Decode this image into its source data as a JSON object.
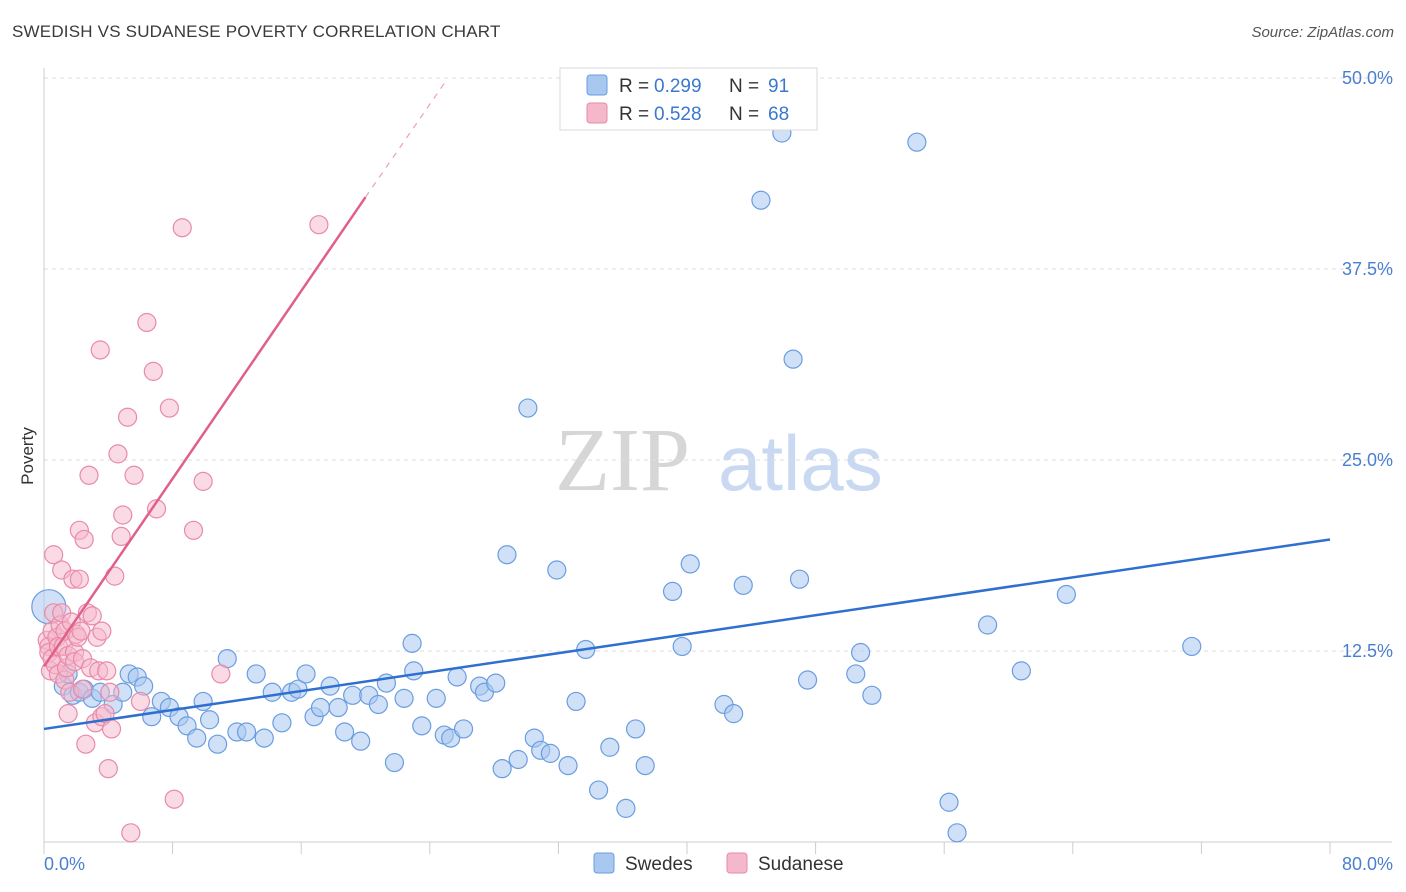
{
  "header": {
    "title": "SWEDISH VS SUDANESE POVERTY CORRELATION CHART",
    "source": "Source: ZipAtlas.com"
  },
  "watermark": {
    "zip": "ZIP",
    "atlas": "atlas"
  },
  "colors": {
    "swedes_fill": "#a9c8f0",
    "swedes_stroke": "#6a9de0",
    "swedes_line": "#2f6fcf",
    "sudanese_fill": "#f5b8cb",
    "sudanese_stroke": "#e88aa8",
    "sudanese_line": "#e0608a"
  },
  "legend": {
    "rows": [
      {
        "r_label": "R = ",
        "r_value": "0.299",
        "n_label": "N = ",
        "n_value": "91"
      },
      {
        "r_label": "R = ",
        "r_value": "0.528",
        "n_label": "N = ",
        "n_value": "68"
      }
    ]
  },
  "chart_data": {
    "type": "scatter",
    "title": "SWEDISH VS SUDANESE POVERTY CORRELATION CHART",
    "xlabel": "",
    "ylabel": "Poverty",
    "xlim": [
      0,
      80
    ],
    "ylim": [
      0,
      50
    ],
    "x_tick_labels": [
      "0.0%",
      "80.0%"
    ],
    "y_tick_labels": [
      "12.5%",
      "25.0%",
      "37.5%",
      "50.0%"
    ],
    "y_ticks": [
      12.5,
      25.0,
      37.5,
      50.0
    ],
    "grid": true,
    "legend_position": "top-center",
    "series": [
      {
        "name": "Swedes",
        "r": 0.299,
        "n": 91,
        "trend": {
          "x": [
            0,
            80
          ],
          "y": [
            7.4,
            19.8
          ]
        },
        "points": [
          [
            0.3,
            15.4
          ],
          [
            1.2,
            10.2
          ],
          [
            1.5,
            11
          ],
          [
            1.8,
            9.6
          ],
          [
            2.2,
            9.8
          ],
          [
            2.5,
            10
          ],
          [
            3.0,
            9.4
          ],
          [
            3.5,
            9.8
          ],
          [
            4.3,
            9
          ],
          [
            4.9,
            9.8
          ],
          [
            5.3,
            11
          ],
          [
            5.8,
            10.8
          ],
          [
            6.2,
            10.2
          ],
          [
            6.7,
            8.2
          ],
          [
            7.3,
            9.2
          ],
          [
            7.8,
            8.8
          ],
          [
            8.4,
            8.2
          ],
          [
            8.9,
            7.6
          ],
          [
            9.5,
            6.8
          ],
          [
            9.9,
            9.2
          ],
          [
            10.3,
            8
          ],
          [
            10.8,
            6.4
          ],
          [
            11.4,
            12
          ],
          [
            12.0,
            7.2
          ],
          [
            12.6,
            7.2
          ],
          [
            13.2,
            11
          ],
          [
            13.7,
            6.8
          ],
          [
            14.2,
            9.8
          ],
          [
            14.8,
            7.8
          ],
          [
            15.4,
            9.8
          ],
          [
            15.8,
            10
          ],
          [
            16.3,
            11
          ],
          [
            16.8,
            8.2
          ],
          [
            17.2,
            8.8
          ],
          [
            17.8,
            10.2
          ],
          [
            18.3,
            8.8
          ],
          [
            18.7,
            7.2
          ],
          [
            19.2,
            9.6
          ],
          [
            19.7,
            6.6
          ],
          [
            20.2,
            9.6
          ],
          [
            20.8,
            9
          ],
          [
            21.3,
            10.4
          ],
          [
            21.8,
            5.2
          ],
          [
            22.4,
            9.4
          ],
          [
            22.9,
            13
          ],
          [
            23.0,
            11.2
          ],
          [
            23.5,
            7.6
          ],
          [
            24.4,
            9.4
          ],
          [
            24.9,
            7
          ],
          [
            25.3,
            6.8
          ],
          [
            25.7,
            10.8
          ],
          [
            26.1,
            7.4
          ],
          [
            27.1,
            10.2
          ],
          [
            27.4,
            9.8
          ],
          [
            28.1,
            10.4
          ],
          [
            28.5,
            4.8
          ],
          [
            28.8,
            18.8
          ],
          [
            29.5,
            5.4
          ],
          [
            30.1,
            28.4
          ],
          [
            30.5,
            6.8
          ],
          [
            30.9,
            6
          ],
          [
            31.5,
            5.8
          ],
          [
            31.9,
            17.8
          ],
          [
            32.6,
            5
          ],
          [
            33.1,
            9.2
          ],
          [
            33.7,
            12.6
          ],
          [
            34.5,
            3.4
          ],
          [
            35.2,
            6.2
          ],
          [
            36.2,
            2.2
          ],
          [
            36.8,
            7.4
          ],
          [
            37.4,
            5
          ],
          [
            39.1,
            16.4
          ],
          [
            39.7,
            12.8
          ],
          [
            40.2,
            18.2
          ],
          [
            42.3,
            9
          ],
          [
            42.9,
            8.4
          ],
          [
            43.5,
            16.8
          ],
          [
            44.6,
            42
          ],
          [
            45.9,
            46.4
          ],
          [
            46.6,
            31.6
          ],
          [
            47.0,
            17.2
          ],
          [
            47.5,
            10.6
          ],
          [
            50.5,
            11
          ],
          [
            50.8,
            12.4
          ],
          [
            51.5,
            9.6
          ],
          [
            54.3,
            45.8
          ],
          [
            56.3,
            2.6
          ],
          [
            56.8,
            0.6
          ],
          [
            58.7,
            14.2
          ],
          [
            60.8,
            11.2
          ],
          [
            63.6,
            16.2
          ],
          [
            71.4,
            12.8
          ]
        ]
      },
      {
        "name": "Sudanese",
        "r": 0.528,
        "n": 68,
        "trend": {
          "x": [
            0,
            20
          ],
          "y": [
            11.5,
            42.2
          ]
        },
        "trend_dashed": {
          "x": [
            20,
            25
          ],
          "y": [
            42.2,
            49.8
          ]
        },
        "points": [
          [
            0.2,
            13.2
          ],
          [
            0.3,
            12.8
          ],
          [
            0.3,
            12.4
          ],
          [
            0.4,
            11.2
          ],
          [
            0.5,
            13.8
          ],
          [
            0.5,
            12
          ],
          [
            0.6,
            15
          ],
          [
            0.6,
            18.8
          ],
          [
            0.7,
            11.6
          ],
          [
            0.8,
            13.4
          ],
          [
            0.9,
            11
          ],
          [
            0.9,
            12.8
          ],
          [
            1.0,
            14.2
          ],
          [
            1.1,
            15
          ],
          [
            1.1,
            17.8
          ],
          [
            1.2,
            12.8
          ],
          [
            1.3,
            10.6
          ],
          [
            1.3,
            13.8
          ],
          [
            1.4,
            11.4
          ],
          [
            1.5,
            8.4
          ],
          [
            1.5,
            12.2
          ],
          [
            1.6,
            9.8
          ],
          [
            1.7,
            14.4
          ],
          [
            1.8,
            17.2
          ],
          [
            1.9,
            12.4
          ],
          [
            1.9,
            11.8
          ],
          [
            2.0,
            13.6
          ],
          [
            2.1,
            13.4
          ],
          [
            2.2,
            20.4
          ],
          [
            2.2,
            17.2
          ],
          [
            2.3,
            13.8
          ],
          [
            2.4,
            10
          ],
          [
            2.4,
            12
          ],
          [
            2.5,
            19.8
          ],
          [
            2.6,
            6.4
          ],
          [
            2.7,
            15
          ],
          [
            2.8,
            24
          ],
          [
            2.9,
            11.4
          ],
          [
            3.0,
            14.8
          ],
          [
            3.2,
            7.8
          ],
          [
            3.3,
            13.4
          ],
          [
            3.4,
            11.2
          ],
          [
            3.5,
            32.2
          ],
          [
            3.6,
            13.8
          ],
          [
            3.6,
            8.2
          ],
          [
            3.8,
            8.4
          ],
          [
            3.9,
            11.2
          ],
          [
            4.0,
            4.8
          ],
          [
            4.1,
            9.8
          ],
          [
            4.2,
            7.4
          ],
          [
            4.4,
            17.4
          ],
          [
            4.6,
            25.4
          ],
          [
            4.8,
            20
          ],
          [
            4.9,
            21.4
          ],
          [
            5.2,
            27.8
          ],
          [
            5.4,
            0.6
          ],
          [
            5.6,
            24
          ],
          [
            6.0,
            9.2
          ],
          [
            6.4,
            34
          ],
          [
            6.8,
            30.8
          ],
          [
            7.0,
            21.8
          ],
          [
            7.8,
            28.4
          ],
          [
            8.1,
            2.8
          ],
          [
            8.6,
            40.2
          ],
          [
            9.3,
            20.4
          ],
          [
            9.9,
            23.6
          ],
          [
            11.0,
            11
          ],
          [
            17.1,
            40.4
          ]
        ]
      }
    ]
  },
  "bottom_legend": {
    "swedes": "Swedes",
    "sudanese": "Sudanese"
  }
}
